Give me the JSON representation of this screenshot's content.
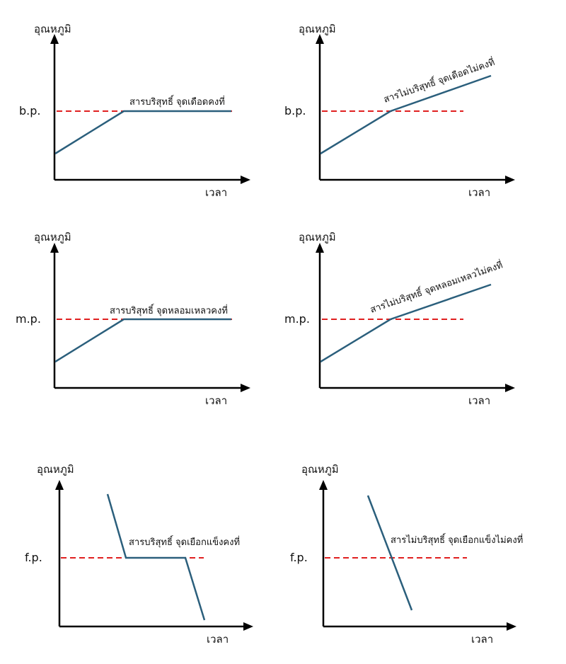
{
  "y_axis_label": "อุณหภูมิ",
  "x_axis_label": "เวลา",
  "panels": [
    {
      "ref_label": "b.p.",
      "note": "สารบริสุทธิ์ จุดเดือดคงที่"
    },
    {
      "ref_label": "b.p.",
      "note": "สารไม่บริสุทธิ์ จุดเดือดไม่คงที่"
    },
    {
      "ref_label": "m.p.",
      "note": "สารบริสุทธิ์ จุดหลอมเหลวคงที่"
    },
    {
      "ref_label": "m.p.",
      "note": "สารไม่บริสุทธิ์ จุดหลอมเหลวไม่คงที่"
    },
    {
      "ref_label": "f.p.",
      "note": "สารบริสุทธิ์ จุดเยือกแข็งคงที่"
    },
    {
      "ref_label": "f.p.",
      "note": "สารไม่บริสุทธิ์ จุดเยือกแข็งไม่คงที่"
    }
  ],
  "colors": {
    "curve": "#2b5f7c",
    "reference_line": "#e02020",
    "axis": "#000000"
  }
}
